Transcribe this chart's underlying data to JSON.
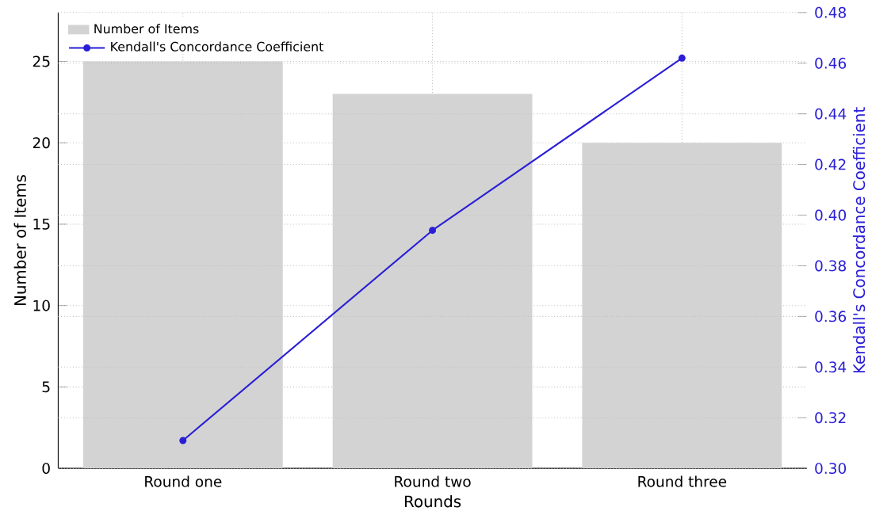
{
  "chart_data": {
    "type": "bar",
    "categories": [
      "Round one",
      "Round two",
      "Round three"
    ],
    "xlabel": "Rounds",
    "ylabel": "Number of Items",
    "y2label": "Kendall's Concordance Coefficient",
    "series": [
      {
        "name": "Number of Items",
        "color": "#d3d3d3",
        "values": [
          25,
          23,
          20
        ]
      },
      {
        "name": "Kendall's Concordance Coefficient",
        "type": "line",
        "axis": "y2",
        "color": "#2a1fd6",
        "values": [
          0.311,
          0.394,
          0.462
        ]
      }
    ],
    "ylim": [
      0,
      28
    ],
    "yticks": [
      0,
      5,
      10,
      15,
      20,
      25
    ],
    "y2lim": [
      0.3,
      0.48
    ],
    "y2ticks": [
      {
        "value": 0.3,
        "label": "0.30"
      },
      {
        "value": 0.32,
        "label": "0.32"
      },
      {
        "value": 0.34,
        "label": "0.34"
      },
      {
        "value": 0.36,
        "label": "0.36"
      },
      {
        "value": 0.38,
        "label": "0.38"
      },
      {
        "value": 0.4,
        "label": "0.40"
      },
      {
        "value": 0.42,
        "label": "0.42"
      },
      {
        "value": 0.44,
        "label": "0.44"
      },
      {
        "value": 0.46,
        "label": "0.46"
      },
      {
        "value": 0.48,
        "label": "0.48"
      }
    ],
    "grid": true,
    "legend": "top left",
    "marker": "circle",
    "line_style": "solid"
  }
}
